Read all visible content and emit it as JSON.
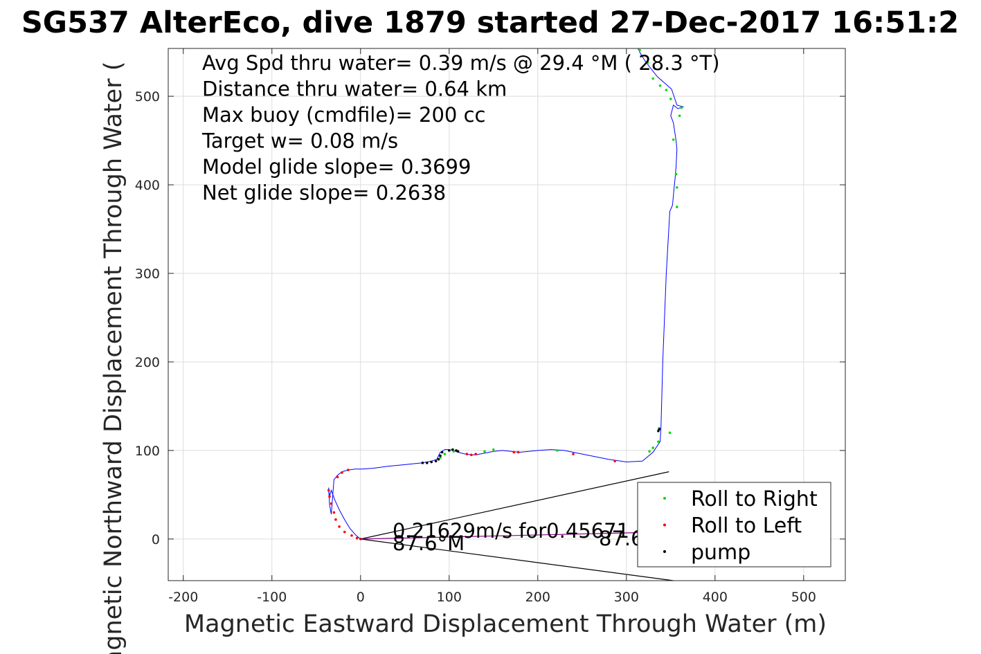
{
  "chart_data": {
    "type": "line",
    "title": "SG537 AlterEco, dive 1879 started 27-Dec-2017 16:51:2",
    "xlabel": "Magnetic Eastward Displacement Through Water (m)",
    "ylabel": "Magnetic Northward Displacement Through Water (",
    "xlim": [
      -217,
      547
    ],
    "ylim": [
      -47,
      554
    ],
    "xticks": [
      -200,
      -100,
      0,
      100,
      200,
      300,
      400,
      500
    ],
    "yticks": [
      0,
      100,
      200,
      300,
      400,
      500
    ],
    "xtick_labels": [
      "-200",
      "-100",
      "0",
      "100",
      "200",
      "300",
      "400",
      "500"
    ],
    "ytick_labels": [
      "0",
      "100",
      "200",
      "300",
      "400",
      "500"
    ],
    "grid": true,
    "legend_position": "bottom-right",
    "annotations": [
      "Avg Spd thru water=  0.39 m/s @  29.4 °M ( 28.3 °T)",
      "Distance thru water=  0.64 km",
      "Max buoy (cmdfile)= 200 cc",
      "Target w= 0.08 m/s",
      "Model glide slope= 0.3699",
      "Net glide slope= 0.2638"
    ],
    "current_labels": {
      "speed_text": "0.21629m/s for0.45671",
      "heading_text": "87.6°M",
      "heading_text_right": "87.6"
    },
    "series": [
      {
        "name": "track",
        "color": "#0000ff",
        "x": [
          0,
          -5,
          -12,
          -18,
          -24,
          -29,
          -33,
          -35,
          -36,
          -35,
          -33,
          -30,
          -26,
          -21,
          -14,
          -6,
          2,
          15,
          30,
          50,
          70,
          80,
          86,
          88,
          90,
          95,
          100,
          105,
          110,
          118,
          125,
          130,
          140,
          150,
          160,
          170,
          180,
          200,
          215,
          230,
          240,
          260,
          280,
          300,
          318,
          330,
          338,
          339,
          341,
          345,
          349,
          352,
          354,
          355,
          356,
          357,
          356,
          353,
          350,
          353,
          358,
          364,
          357,
          351,
          343,
          335,
          327,
          321,
          316,
          313
        ],
        "y": [
          0,
          4,
          12,
          22,
          33,
          44,
          55,
          48,
          58,
          39,
          28,
          67,
          72,
          76,
          78,
          79,
          79,
          80,
          82,
          84,
          86,
          88,
          90,
          94,
          98,
          101,
          101,
          100,
          98,
          96,
          95,
          95,
          97,
          99,
          100,
          99,
          98,
          100,
          101,
          100,
          98,
          94,
          90,
          87,
          88,
          98,
          110,
          125,
          200,
          300,
          370,
          377,
          398,
          408,
          420,
          440,
          450,
          470,
          478,
          490,
          486,
          488,
          490,
          508,
          515,
          522,
          532,
          540,
          548,
          554
        ]
      }
    ],
    "markers": [
      {
        "name": "Roll to Right",
        "color": "#00dd00",
        "x": [
          315,
          324,
          330,
          338,
          345,
          350,
          360,
          362,
          356,
          353,
          357,
          357,
          349,
          336,
          337,
          330,
          326,
          222,
          150,
          140,
          95,
          100,
          105,
          90
        ],
        "y": [
          552,
          538,
          520,
          512,
          507,
          497,
          478,
          487,
          412,
          451,
          397,
          375,
          120,
          110,
          125,
          103,
          99,
          100,
          101,
          99,
          96,
          100,
          99,
          92
        ]
      },
      {
        "name": "Roll to Left",
        "color": "#ff0000",
        "x": [
          287,
          240,
          178,
          173,
          130,
          125,
          120,
          -35,
          -36,
          -33,
          -30,
          -26,
          -21,
          -14,
          -28,
          -24,
          -18,
          -10,
          -4,
          0
        ],
        "y": [
          88,
          96,
          98,
          98,
          96,
          95,
          96,
          48,
          55,
          40,
          30,
          70,
          75,
          78,
          22,
          14,
          8,
          4,
          1,
          0
        ]
      },
      {
        "name": "pump",
        "color": "#000000",
        "x": [
          70,
          75,
          80,
          85,
          88,
          90,
          92,
          100,
          104,
          108,
          110,
          337,
          336
        ],
        "y": [
          86,
          86,
          87,
          88,
          90,
          94,
          98,
          100,
          101,
          100,
          99,
          124,
          122
        ]
      }
    ],
    "current_lines": [
      {
        "x": [
          0,
          348
        ],
        "y": [
          0,
          76
        ]
      },
      {
        "x": [
          0,
          353
        ],
        "y": [
          0,
          -47
        ]
      },
      {
        "x": [
          0,
          348
        ],
        "y": [
          0,
          8
        ]
      }
    ],
    "legend": [
      "Roll to Right",
      "Roll to Left",
      "pump"
    ]
  }
}
